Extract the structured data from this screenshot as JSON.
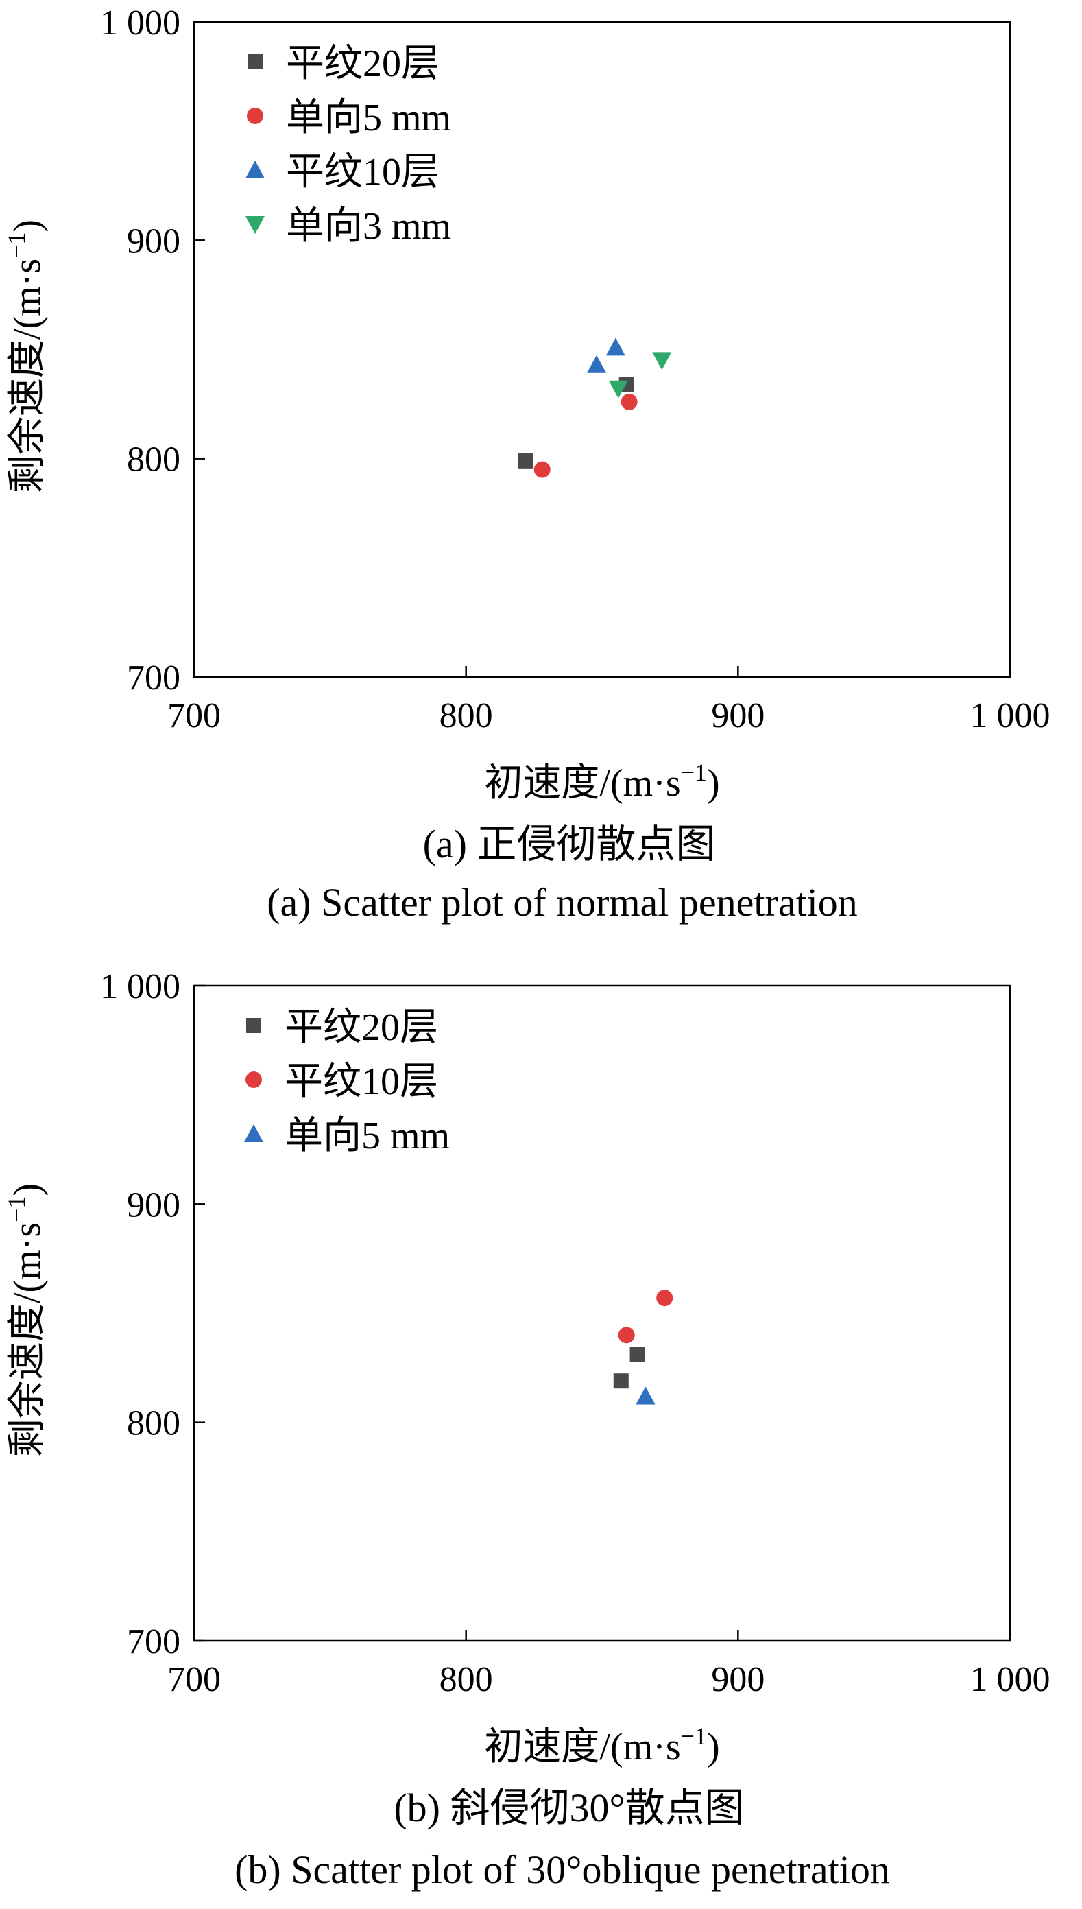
{
  "colors": {
    "square": "#4a4a4a",
    "circle": "#e03c3c",
    "triangle_up": "#2e6fc0",
    "triangle_down": "#2fa86a"
  },
  "chart_data": [
    {
      "type": "scatter",
      "title": "",
      "xlabel": "初速度/(m·s⁻¹)",
      "ylabel": "剩余速度/(m·s⁻¹)",
      "xlim": [
        700,
        1000
      ],
      "ylim": [
        700,
        1000
      ],
      "xticks": [
        "700",
        "800",
        "900",
        "1 000"
      ],
      "yticks": [
        "700",
        "800",
        "900",
        "1 000"
      ],
      "grid": false,
      "legend_position": "top-left",
      "caption_cn": "(a) 正侵彻散点图",
      "caption_en": "(a) Scatter plot of normal penetration",
      "series": [
        {
          "name": "平纹20层",
          "marker": "square",
          "color": "#4a4a4a",
          "points": [
            [
              822,
              799
            ],
            [
              859,
              834
            ]
          ]
        },
        {
          "name": "单向5 mm",
          "marker": "circle",
          "color": "#e03c3c",
          "points": [
            [
              828,
              795
            ],
            [
              860,
              826
            ]
          ]
        },
        {
          "name": "平纹10层",
          "marker": "triangle_up",
          "color": "#2e6fc0",
          "points": [
            [
              848,
              843
            ],
            [
              855,
              851
            ]
          ]
        },
        {
          "name": "单向3 mm",
          "marker": "triangle_down",
          "color": "#2fa86a",
          "points": [
            [
              856,
              832
            ],
            [
              872,
              845
            ]
          ]
        }
      ]
    },
    {
      "type": "scatter",
      "title": "",
      "xlabel": "初速度/(m·s⁻¹)",
      "ylabel": "剩余速度/(m·s⁻¹)",
      "xlim": [
        700,
        1000
      ],
      "ylim": [
        700,
        1000
      ],
      "xticks": [
        "700",
        "800",
        "900",
        "1 000"
      ],
      "yticks": [
        "700",
        "800",
        "900",
        "1 000"
      ],
      "grid": false,
      "legend_position": "top-left",
      "caption_cn": "(b) 斜侵彻30°散点图",
      "caption_en": "(b) Scatter plot of 30°oblique penetration",
      "series": [
        {
          "name": "平纹20层",
          "marker": "square",
          "color": "#4a4a4a",
          "points": [
            [
              857,
              819
            ],
            [
              863,
              831
            ]
          ]
        },
        {
          "name": "平纹10层",
          "marker": "circle",
          "color": "#e03c3c",
          "points": [
            [
              859,
              840
            ],
            [
              873,
              857
            ]
          ]
        },
        {
          "name": "单向5 mm",
          "marker": "triangle_up",
          "color": "#2e6fc0",
          "points": [
            [
              866,
              812
            ]
          ]
        }
      ]
    }
  ]
}
